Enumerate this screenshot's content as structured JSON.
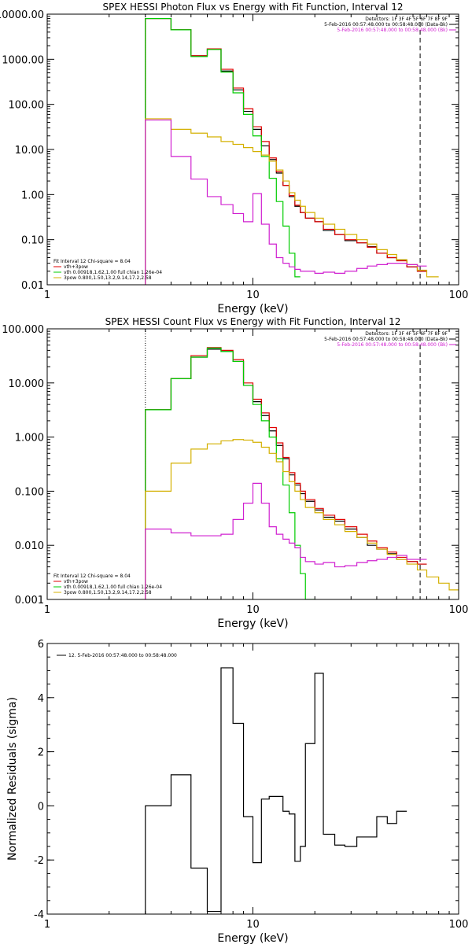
{
  "chart_data": [
    {
      "type": "line",
      "title": "SPEX HESSI Photon Flux vs Energy with Fit Function, Interval 12",
      "xlabel": "Energy (keV)",
      "ylabel": "",
      "xscale": "log",
      "yscale": "log",
      "xlim": [
        1,
        100
      ],
      "ylim": [
        0.01,
        10000
      ],
      "xticks": [
        {
          "v": 1,
          "label": "1"
        },
        {
          "v": 10,
          "label": "10"
        },
        {
          "v": 100,
          "label": "100"
        }
      ],
      "yticks": [
        {
          "v": 0.01,
          "label": "0.01"
        },
        {
          "v": 0.1,
          "label": "0.10"
        },
        {
          "v": 1,
          "label": "1.00"
        },
        {
          "v": 10,
          "label": "10.00"
        },
        {
          "v": 100,
          "label": "100.00"
        },
        {
          "v": 1000,
          "label": "1000.00"
        },
        {
          "v": 10000,
          "label": "10000.00"
        }
      ],
      "vlines": [
        {
          "x": 3.0,
          "style": "dotted",
          "color": "#000000"
        },
        {
          "x": 65,
          "style": "dashed",
          "color": "#000000"
        }
      ],
      "header_lines": [
        "Detectors: 1F 3F 4F 5F 6F 7F 8F 9F",
        "5-Feb-2016 00:57:48.000 to 00:58:48.000 (Data-Bk)",
        "5-Feb-2016 00:57:48.000 to 00:58:48.000 (Bk)"
      ],
      "header_colors": [
        "#000000",
        "#000000",
        "#d020d0"
      ],
      "legend_lines": [
        "Fit Interval 12   Chi-square = 8.04",
        "vth+3pow",
        "vth 0.00918,1.62,1.00  full chian 1.26e-04",
        "3pow 0.800,1.50,13.2,9.14,17.2,2.58"
      ],
      "legend_colors": [
        "#000000",
        "#e00000",
        "#00cc00",
        "#d4b000"
      ],
      "edges": [
        3,
        4,
        5,
        6,
        7,
        8,
        9,
        10,
        11,
        12,
        13,
        14,
        15,
        16,
        17,
        18,
        20,
        22,
        25,
        28,
        32,
        36,
        40,
        45,
        50,
        56,
        63,
        70,
        80
      ],
      "series": [
        {
          "color": "#000000",
          "values": [
            8000,
            4500,
            1200,
            1700,
            550,
            210,
            70,
            28,
            12,
            6,
            3,
            1.6,
            0.9,
            0.55,
            0.4,
            0.3,
            0.25,
            0.16,
            0.13,
            0.095,
            0.085,
            0.07,
            0.05,
            0.04,
            0.035,
            0.025,
            0.02,
            null
          ]
        },
        {
          "color": "#e00000",
          "values": [
            8000,
            4500,
            1200,
            1700,
            600,
            230,
            80,
            32,
            15,
            6.5,
            3.2,
            1.6,
            0.95,
            0.58,
            0.4,
            0.3,
            0.25,
            0.17,
            0.13,
            0.1,
            0.085,
            0.068,
            0.05,
            0.04,
            0.034,
            0.025,
            0.02,
            null
          ]
        },
        {
          "color": "#00cc00",
          "values": [
            8000,
            4500,
            1150,
            1650,
            520,
            180,
            60,
            20,
            7,
            2.3,
            0.7,
            0.2,
            0.05,
            0.015,
            null,
            null,
            null,
            null,
            null,
            null,
            null,
            null,
            null,
            null,
            null,
            null,
            null,
            null
          ]
        },
        {
          "color": "#d4b000",
          "values": [
            48,
            28,
            23,
            19,
            15,
            13,
            11,
            9,
            7.5,
            5.5,
            3.5,
            2,
            1.1,
            0.75,
            0.55,
            0.4,
            0.3,
            0.22,
            0.17,
            0.13,
            0.1,
            0.08,
            0.06,
            0.047,
            0.036,
            0.028,
            0.021,
            0.015
          ]
        },
        {
          "color": "#d020d0",
          "values": [
            45,
            7,
            2.2,
            0.9,
            0.6,
            0.38,
            0.25,
            1.05,
            0.22,
            0.08,
            0.04,
            0.03,
            0.025,
            0.022,
            0.02,
            0.02,
            0.018,
            0.019,
            0.018,
            0.02,
            0.023,
            0.026,
            0.028,
            0.03,
            0.03,
            0.028,
            0.026,
            null
          ]
        }
      ]
    },
    {
      "type": "line",
      "title": "SPEX HESSI Count Flux vs Energy with Fit Function, Interval 12",
      "xlabel": "Energy (keV)",
      "ylabel": "",
      "xscale": "log",
      "yscale": "log",
      "xlim": [
        1,
        100
      ],
      "ylim": [
        0.001,
        100
      ],
      "xticks": [
        {
          "v": 1,
          "label": "1"
        },
        {
          "v": 10,
          "label": "10"
        },
        {
          "v": 100,
          "label": "100"
        }
      ],
      "yticks": [
        {
          "v": 0.001,
          "label": "0.001"
        },
        {
          "v": 0.01,
          "label": "0.010"
        },
        {
          "v": 0.1,
          "label": "0.100"
        },
        {
          "v": 1,
          "label": "1.000"
        },
        {
          "v": 10,
          "label": "10.000"
        },
        {
          "v": 100,
          "label": "100.000"
        }
      ],
      "vlines": [
        {
          "x": 3.0,
          "style": "dotted",
          "color": "#000000"
        },
        {
          "x": 65,
          "style": "dashed",
          "color": "#000000"
        }
      ],
      "header_lines": [
        "Detectors: 1F 3F 4F 5F 6F 7F 8F 9F",
        "5-Feb-2016 00:57:48.000 to 00:58:48.000 (Data-Bk)",
        "5-Feb-2016 00:57:48.000 to 00:58:48.000 (Bk)"
      ],
      "header_colors": [
        "#000000",
        "#000000",
        "#d020d0"
      ],
      "legend_lines": [
        "Fit Interval 12   Chi-square = 8.04",
        "vth+3pow",
        "vth 0.00918,1.62,1.00  full chian 1.26e-04",
        "3pow 0.800,1.50,13.2,9.14,17.2,2.58"
      ],
      "legend_colors": [
        "#000000",
        "#e00000",
        "#00cc00",
        "#d4b000"
      ],
      "edges": [
        3,
        4,
        5,
        6,
        7,
        8,
        9,
        10,
        11,
        12,
        13,
        14,
        15,
        16,
        17,
        18,
        20,
        22,
        25,
        28,
        32,
        36,
        40,
        45,
        50,
        56,
        63,
        70,
        80,
        90,
        100
      ],
      "series": [
        {
          "color": "#000000",
          "values": [
            3.2,
            12,
            30,
            42,
            38,
            25,
            9,
            4.5,
            2.5,
            1.3,
            0.7,
            0.4,
            0.2,
            0.13,
            0.09,
            0.065,
            0.045,
            0.033,
            0.028,
            0.02,
            0.014,
            0.01,
            0.0085,
            0.007,
            0.0055,
            0.005,
            0.0045,
            null,
            null,
            null
          ]
        },
        {
          "color": "#e00000",
          "values": [
            3.2,
            12,
            32,
            45,
            40,
            27,
            10,
            5,
            2.8,
            1.5,
            0.78,
            0.42,
            0.22,
            0.14,
            0.1,
            0.07,
            0.048,
            0.036,
            0.03,
            0.022,
            0.016,
            0.012,
            0.009,
            0.0075,
            0.006,
            0.005,
            0.0045,
            null,
            null,
            null
          ]
        },
        {
          "color": "#00cc00",
          "values": [
            3.2,
            12,
            30,
            44,
            38,
            25,
            9,
            4,
            2,
            1,
            0.4,
            0.13,
            0.04,
            0.01,
            0.003,
            0.001,
            null,
            null,
            null,
            null,
            null,
            null,
            null,
            null,
            null,
            null,
            null,
            null,
            null,
            null
          ]
        },
        {
          "color": "#d4b000",
          "values": [
            0.1,
            0.33,
            0.6,
            0.75,
            0.85,
            0.9,
            0.88,
            0.8,
            0.65,
            0.5,
            0.35,
            0.23,
            0.15,
            0.1,
            0.07,
            0.05,
            0.04,
            0.03,
            0.024,
            0.018,
            0.014,
            0.011,
            0.0085,
            0.0068,
            0.0055,
            0.0045,
            0.0035,
            0.0026,
            0.002,
            0.0015
          ]
        },
        {
          "color": "#d020d0",
          "values": [
            0.02,
            0.017,
            0.015,
            0.015,
            0.016,
            0.03,
            0.06,
            0.14,
            0.06,
            0.022,
            0.016,
            0.013,
            0.011,
            0.009,
            0.006,
            0.005,
            0.0045,
            0.0048,
            0.004,
            0.0042,
            0.0048,
            0.0052,
            0.0055,
            0.006,
            0.0065,
            0.0055,
            0.0055,
            null,
            null,
            null
          ]
        }
      ]
    },
    {
      "type": "line",
      "title": "",
      "xlabel": "Energy (keV)",
      "ylabel": "Normalized Residuals (sigma)",
      "xscale": "log",
      "yscale": "linear",
      "xlim": [
        1,
        100
      ],
      "ylim": [
        -4,
        6
      ],
      "xticks": [
        {
          "v": 1,
          "label": "1"
        },
        {
          "v": 10,
          "label": "10"
        },
        {
          "v": 100,
          "label": "100"
        }
      ],
      "yticks": [
        {
          "v": -4,
          "label": "-4"
        },
        {
          "v": -2,
          "label": "-2"
        },
        {
          "v": 0,
          "label": "0"
        },
        {
          "v": 2,
          "label": "2"
        },
        {
          "v": 4,
          "label": "4"
        },
        {
          "v": 6,
          "label": "6"
        }
      ],
      "vlines": [],
      "header_lines": [],
      "header_colors": [],
      "legend_lines": [
        "12.  5-Feb-2016 00:57:48.000 to 00:58:48.000"
      ],
      "legend_colors": [
        "#000000"
      ],
      "edges": [
        3,
        4,
        5,
        6,
        7,
        8,
        9,
        10,
        11,
        12,
        13,
        14,
        15,
        16,
        17,
        18,
        20,
        22,
        25,
        28,
        32,
        36,
        40,
        45,
        50,
        56,
        63,
        70
      ],
      "series": [
        {
          "color": "#000000",
          "values": [
            0.0,
            1.15,
            -2.3,
            -3.9,
            5.1,
            3.05,
            -0.4,
            -2.1,
            0.25,
            0.35,
            0.35,
            -0.2,
            -0.3,
            -2.05,
            -1.5,
            2.3,
            4.9,
            -1.05,
            -1.45,
            -1.5,
            -1.15,
            -1.15,
            -0.4,
            -0.65,
            -0.2,
            null,
            null
          ]
        }
      ]
    }
  ]
}
